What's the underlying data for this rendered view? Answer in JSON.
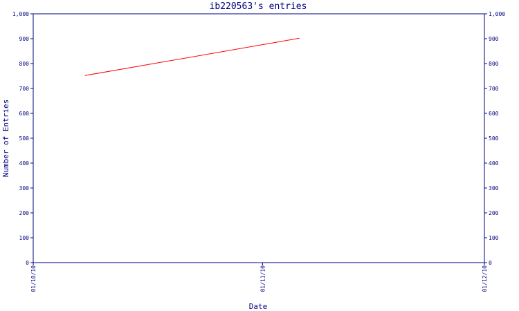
{
  "chart_data": {
    "type": "line",
    "title": "ib220563's entries",
    "xlabel": "Date",
    "ylabel": "Number of Entries",
    "x_ticks": [
      "01/10/10",
      "01/11/10",
      "01/12/10"
    ],
    "xlim": [
      "2010-10-01",
      "2010-12-01"
    ],
    "ylim": [
      0,
      1000
    ],
    "y_ticks": [
      "0",
      "100",
      "200",
      "300",
      "400",
      "500",
      "600",
      "700",
      "800",
      "900",
      "1,000"
    ],
    "y_tick_values": [
      0,
      100,
      200,
      300,
      400,
      500,
      600,
      700,
      800,
      900,
      1000
    ],
    "grid": false,
    "right_axis": true,
    "series": [
      {
        "color": "#ff0000",
        "points": [
          {
            "x": "2010-10-08",
            "y": 752
          },
          {
            "x": "2010-11-06",
            "y": 902
          }
        ]
      }
    ],
    "colors": {
      "axis": "#000080",
      "text": "#000080",
      "background": "#ffffff"
    }
  }
}
